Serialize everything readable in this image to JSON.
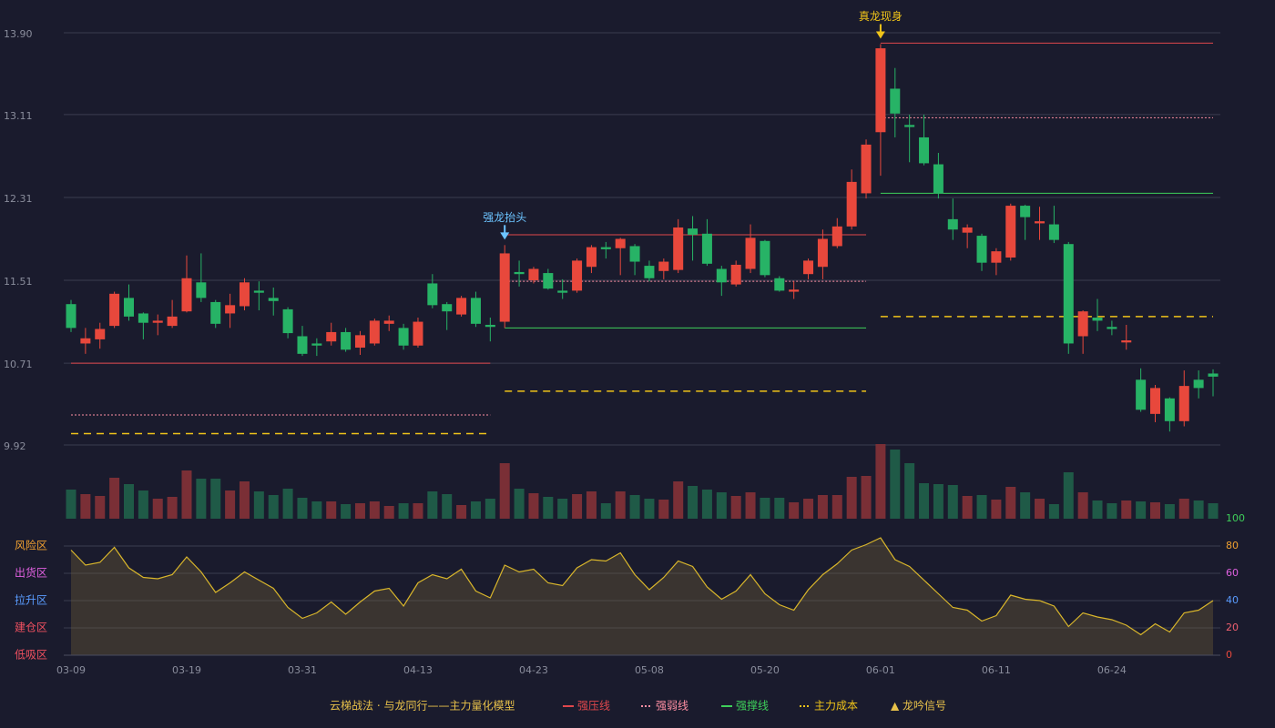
{
  "chart_data": [
    {
      "type": "candlestick",
      "open": [
        11.28,
        10.9,
        10.94,
        11.07,
        11.34,
        11.19,
        11.1,
        11.07,
        11.21,
        11.49,
        11.3,
        11.19,
        11.26,
        11.41,
        11.34,
        11.23,
        10.97,
        10.9,
        10.92,
        11.01,
        10.86,
        10.9,
        11.09,
        11.05,
        10.88,
        11.48,
        11.28,
        11.18,
        11.34,
        11.08,
        11.11,
        11.59,
        11.51,
        11.58,
        11.41,
        11.41,
        11.64,
        11.83,
        11.82,
        11.84,
        11.65,
        11.6,
        11.61,
        12.01,
        11.96,
        11.62,
        11.47,
        11.62,
        11.89,
        11.53,
        11.4,
        11.57,
        11.64,
        11.84,
        12.03,
        12.35,
        12.94,
        13.36,
        13.01,
        12.89,
        12.63,
        12.1,
        11.97,
        11.94,
        11.68,
        11.73,
        12.23,
        12.06,
        12.05,
        11.86,
        10.97,
        11.15,
        11.06,
        10.91,
        10.55,
        10.22,
        10.37,
        10.15,
        10.55,
        10.61
      ],
      "high": [
        11.32,
        11.05,
        11.1,
        11.4,
        11.47,
        11.2,
        11.18,
        11.32,
        11.75,
        11.77,
        11.32,
        11.38,
        11.53,
        11.5,
        11.44,
        11.25,
        11.07,
        10.95,
        11.1,
        11.05,
        11.02,
        11.14,
        11.17,
        11.09,
        11.15,
        11.57,
        11.3,
        11.36,
        11.4,
        11.15,
        11.85,
        11.7,
        11.64,
        11.62,
        11.52,
        11.72,
        11.85,
        11.88,
        11.92,
        11.86,
        11.7,
        11.72,
        12.1,
        12.13,
        12.1,
        11.65,
        11.7,
        12.05,
        11.9,
        11.55,
        11.5,
        11.72,
        12.0,
        12.11,
        12.58,
        12.87,
        13.79,
        13.56,
        13.11,
        13.11,
        12.74,
        12.3,
        12.05,
        11.96,
        11.82,
        12.25,
        12.24,
        12.22,
        12.23,
        11.88,
        11.22,
        11.33,
        11.12,
        11.08,
        10.66,
        10.5,
        10.38,
        10.64,
        10.64,
        10.65
      ],
      "low": [
        11.01,
        10.8,
        10.85,
        11.05,
        11.12,
        10.94,
        10.98,
        11.05,
        11.2,
        11.3,
        11.05,
        11.05,
        11.22,
        11.22,
        11.17,
        10.95,
        10.78,
        10.78,
        10.88,
        10.82,
        10.79,
        10.88,
        11.02,
        10.84,
        10.86,
        11.24,
        11.03,
        11.16,
        11.06,
        10.92,
        11.05,
        11.45,
        11.48,
        11.42,
        11.33,
        11.39,
        11.58,
        11.72,
        11.56,
        11.56,
        11.5,
        11.52,
        11.58,
        11.7,
        11.65,
        11.36,
        11.45,
        11.58,
        11.54,
        11.4,
        11.33,
        11.52,
        11.52,
        11.82,
        12.0,
        12.3,
        12.52,
        12.89,
        12.65,
        12.62,
        12.3,
        11.9,
        11.82,
        11.6,
        11.56,
        11.7,
        11.9,
        11.9,
        11.87,
        10.8,
        10.8,
        11.02,
        10.98,
        10.84,
        10.24,
        10.14,
        10.05,
        10.1,
        10.37,
        10.39
      ],
      "close": [
        11.05,
        10.95,
        11.04,
        11.38,
        11.16,
        11.1,
        11.12,
        11.16,
        11.53,
        11.34,
        11.09,
        11.27,
        11.49,
        11.39,
        11.31,
        11.0,
        10.8,
        10.88,
        11.01,
        10.84,
        10.98,
        11.12,
        11.12,
        10.88,
        11.11,
        11.27,
        11.21,
        11.34,
        11.09,
        11.06,
        11.77,
        11.57,
        11.62,
        11.43,
        11.39,
        11.7,
        11.83,
        11.81,
        11.91,
        11.69,
        11.53,
        11.69,
        12.02,
        11.95,
        11.67,
        11.49,
        11.66,
        11.92,
        11.56,
        11.41,
        11.42,
        11.7,
        11.91,
        12.03,
        12.46,
        12.82,
        13.75,
        13.12,
        12.99,
        12.64,
        12.35,
        12.0,
        12.02,
        11.68,
        11.79,
        12.23,
        12.12,
        12.08,
        11.9,
        10.9,
        11.21,
        11.12,
        11.04,
        10.93,
        10.26,
        10.47,
        10.15,
        10.49,
        10.47,
        10.58
      ],
      "up_color": "#e8483c",
      "down_color": "#27b366",
      "ylim": [
        9.92,
        13.9
      ],
      "yticks": [
        9.92,
        10.71,
        11.51,
        12.31,
        13.11,
        {
          "value": 13.9,
          "label": "13.90"
        }
      ],
      "grid": true,
      "series": [
        {
          "name": "强压线",
          "color": "#e0474c",
          "style": "solid",
          "values": [
            10.71,
            10.71,
            10.71,
            10.71,
            10.71,
            10.71,
            10.71,
            10.71,
            10.71,
            10.71,
            10.71,
            10.71,
            10.71,
            10.71,
            10.71,
            10.71,
            10.71,
            10.71,
            10.71,
            10.71,
            10.71,
            10.71,
            10.71,
            10.71,
            10.71,
            10.71,
            10.71,
            10.71,
            10.71,
            10.71,
            11.95,
            11.95,
            11.95,
            11.95,
            11.95,
            11.95,
            11.95,
            11.95,
            11.95,
            11.95,
            11.95,
            11.95,
            11.95,
            11.95,
            11.95,
            11.95,
            11.95,
            11.95,
            11.95,
            11.95,
            11.95,
            11.95,
            11.95,
            11.95,
            11.95,
            11.95,
            13.8,
            13.8,
            13.8,
            13.8,
            13.8,
            13.8,
            13.8,
            13.8,
            13.8,
            13.8,
            13.8,
            13.8,
            13.8,
            13.8,
            13.8,
            13.8,
            13.8,
            13.8,
            13.8,
            13.8,
            13.8,
            13.8,
            13.8,
            13.8
          ]
        },
        {
          "name": "强弱线",
          "color": "#ff8fa3",
          "style": "dotted",
          "values": [
            10.21,
            10.21,
            10.21,
            10.21,
            10.21,
            10.21,
            10.21,
            10.21,
            10.21,
            10.21,
            10.21,
            10.21,
            10.21,
            10.21,
            10.21,
            10.21,
            10.21,
            10.21,
            10.21,
            10.21,
            10.21,
            10.21,
            10.21,
            10.21,
            10.21,
            10.21,
            10.21,
            10.21,
            10.21,
            10.21,
            11.5,
            11.5,
            11.5,
            11.5,
            11.5,
            11.5,
            11.5,
            11.5,
            11.5,
            11.5,
            11.5,
            11.5,
            11.5,
            11.5,
            11.5,
            11.5,
            11.5,
            11.5,
            11.5,
            11.5,
            11.5,
            11.5,
            11.5,
            11.5,
            11.5,
            11.5,
            13.08,
            13.08,
            13.08,
            13.08,
            13.08,
            13.08,
            13.08,
            13.08,
            13.08,
            13.08,
            13.08,
            13.08,
            13.08,
            13.08,
            13.08,
            13.08,
            13.08,
            13.08,
            13.08,
            13.08,
            13.08,
            13.08,
            13.08,
            13.08
          ]
        },
        {
          "name": "强撑线",
          "color": "#3ecf5a",
          "style": "solid",
          "values": [
            null,
            null,
            null,
            null,
            null,
            null,
            null,
            null,
            null,
            null,
            null,
            null,
            null,
            null,
            null,
            null,
            null,
            null,
            null,
            null,
            null,
            null,
            null,
            null,
            null,
            null,
            null,
            null,
            null,
            null,
            11.05,
            11.05,
            11.05,
            11.05,
            11.05,
            11.05,
            11.05,
            11.05,
            11.05,
            11.05,
            11.05,
            11.05,
            11.05,
            11.05,
            11.05,
            11.05,
            11.05,
            11.05,
            11.05,
            11.05,
            11.05,
            11.05,
            11.05,
            11.05,
            11.05,
            11.05,
            12.35,
            12.35,
            12.35,
            12.35,
            12.35,
            12.35,
            12.35,
            12.35,
            12.35,
            12.35,
            12.35,
            12.35,
            12.35,
            12.35,
            12.35,
            12.35,
            12.35,
            12.35,
            12.35,
            12.35,
            12.35,
            12.35,
            12.35,
            12.35
          ]
        },
        {
          "name": "主力成本",
          "color": "#f0c419",
          "style": "dashed",
          "values": [
            10.03,
            10.03,
            10.03,
            10.03,
            10.03,
            10.03,
            10.03,
            10.03,
            10.03,
            10.03,
            10.03,
            10.03,
            10.03,
            10.03,
            10.03,
            10.03,
            10.03,
            10.03,
            10.03,
            10.03,
            10.03,
            10.03,
            10.03,
            10.03,
            10.03,
            10.03,
            10.03,
            10.03,
            10.03,
            10.03,
            10.44,
            10.44,
            10.44,
            10.44,
            10.44,
            10.44,
            10.44,
            10.44,
            10.44,
            10.44,
            10.44,
            10.44,
            10.44,
            10.44,
            10.44,
            10.44,
            10.44,
            10.44,
            10.44,
            10.44,
            10.44,
            10.44,
            10.44,
            10.44,
            10.44,
            10.44,
            11.16,
            11.16,
            11.16,
            11.16,
            11.16,
            11.16,
            11.16,
            11.16,
            11.16,
            11.16,
            11.16,
            11.16,
            11.16,
            11.16,
            11.16,
            11.16,
            11.16,
            11.16,
            11.16,
            11.16,
            11.16,
            11.16,
            11.16,
            11.16
          ]
        }
      ],
      "signals": [
        null,
        null,
        null,
        null,
        null,
        null,
        null,
        null,
        null,
        null,
        null,
        null,
        null,
        null,
        null,
        null,
        null,
        null,
        null,
        null,
        null,
        null,
        null,
        null,
        null,
        null,
        null,
        null,
        null,
        null,
        {
          "text": "强龙抬头",
          "color": "#6cc4ff"
        },
        null,
        null,
        null,
        null,
        null,
        null,
        null,
        null,
        null,
        null,
        null,
        null,
        null,
        null,
        null,
        null,
        null,
        null,
        null,
        null,
        null,
        null,
        null,
        null,
        null,
        {
          "text": "真龙现身",
          "color": "#f0c419"
        },
        null,
        null,
        null,
        null,
        null,
        null,
        null,
        null,
        null,
        null,
        null,
        null,
        null,
        null,
        null,
        null,
        null,
        null,
        null,
        null,
        null,
        null,
        null
      ],
      "legend_title": "云梯战法 · 与龙同行——主力量化模型",
      "signal_legend": "▲ 龙吟信号"
    },
    {
      "type": "bar",
      "values": [
        32,
        27,
        25,
        45,
        38,
        31,
        22,
        24,
        53,
        44,
        44,
        31,
        41,
        30,
        26,
        33,
        23,
        19,
        19,
        16,
        17,
        19,
        14,
        17,
        17,
        30,
        27,
        15,
        19,
        22,
        61,
        33,
        28,
        24,
        22,
        27,
        30,
        17,
        30,
        26,
        22,
        21,
        41,
        36,
        32,
        29,
        25,
        29,
        23,
        23,
        18,
        22,
        26,
        26,
        46,
        47,
        82,
        76,
        61,
        39,
        38,
        37,
        25,
        26,
        21,
        35,
        29,
        22,
        16,
        51,
        29,
        20,
        17,
        20,
        19,
        18,
        16,
        22,
        20,
        17
      ],
      "ylim": [
        0,
        82
      ],
      "up_color": "#7a2f36",
      "down_color": "#1f5a47"
    },
    {
      "type": "area",
      "categories": [
        "03-09",
        null,
        null,
        null,
        null,
        null,
        null,
        null,
        "03-19",
        null,
        null,
        null,
        null,
        null,
        null,
        null,
        "03-31",
        null,
        null,
        null,
        null,
        null,
        null,
        null,
        "04-13",
        null,
        null,
        null,
        null,
        null,
        null,
        null,
        "04-23",
        null,
        null,
        null,
        null,
        null,
        null,
        null,
        "05-08",
        null,
        null,
        null,
        null,
        null,
        null,
        null,
        "05-20",
        null,
        null,
        null,
        null,
        null,
        null,
        null,
        "06-01",
        null,
        null,
        null,
        null,
        null,
        null,
        null,
        "06-11",
        null,
        null,
        null,
        null,
        null,
        null,
        null,
        "06-24",
        null,
        null,
        null,
        null,
        null,
        null,
        null
      ],
      "values": [
        77,
        66,
        68,
        79,
        64,
        57,
        56,
        59,
        72,
        61,
        46,
        53,
        61,
        55,
        49,
        35,
        27,
        31,
        39,
        30,
        39,
        47,
        49,
        36,
        53,
        59,
        56,
        63,
        47,
        42,
        66,
        61,
        63,
        53,
        51,
        64,
        70,
        69,
        75,
        59,
        48,
        57,
        69,
        65,
        50,
        41,
        47,
        59,
        45,
        37,
        33,
        48,
        59,
        67,
        77,
        81,
        86,
        70,
        65,
        55,
        45,
        35,
        33,
        25,
        29,
        44,
        41,
        40,
        36,
        21,
        31,
        28,
        26,
        22,
        15,
        23,
        17,
        31,
        33,
        40
      ],
      "color": "#d9b62b",
      "ylim": [
        0,
        100
      ],
      "yticks": [
        0,
        20,
        40,
        60,
        80,
        100
      ],
      "ytick_colors": [
        "#e8483c",
        "#f06070",
        "#5a9cff",
        "#e060e0",
        "#f0a030",
        "#3ecf5a"
      ],
      "zones": [
        {
          "label": "风险区",
          "value": 80,
          "color": "#f0a030"
        },
        {
          "label": "出货区",
          "value": 60,
          "color": "#e060e0"
        },
        {
          "label": "拉升区",
          "value": 40,
          "color": "#5a9cff"
        },
        {
          "label": "建仓区",
          "value": 20,
          "color": "#f05060"
        },
        {
          "label": "低吸区",
          "value": 0,
          "color": "#f05060"
        }
      ]
    }
  ]
}
